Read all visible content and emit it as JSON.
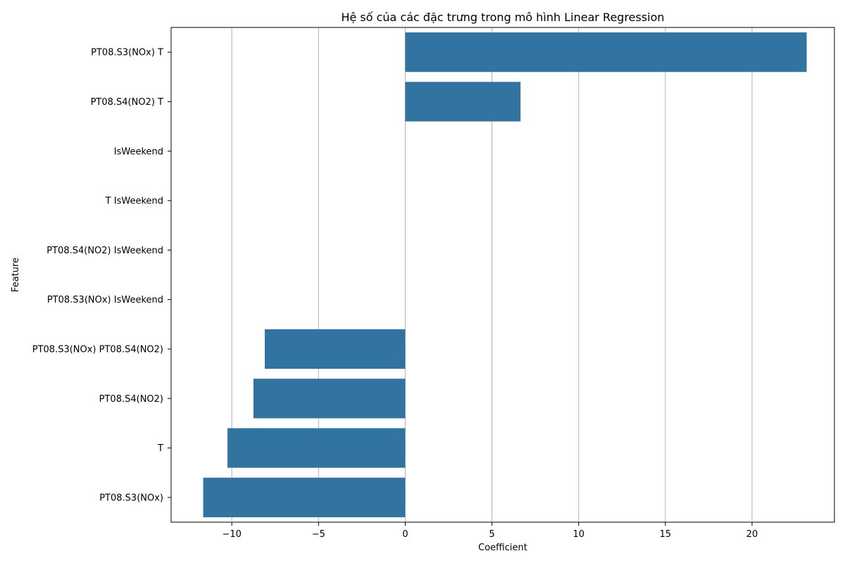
{
  "chart_data": {
    "type": "bar",
    "orientation": "horizontal",
    "title": "Hệ số của các đặc trưng trong mô hình Linear Regression",
    "xlabel": "Coefficient",
    "ylabel": "Feature",
    "categories": [
      "PT08.S3(NOx) T",
      "PT08.S4(NO2) T",
      "IsWeekend",
      "T IsWeekend",
      "PT08.S4(NO2) IsWeekend",
      "PT08.S3(NOx) IsWeekend",
      "PT08.S3(NOx) PT08.S4(NO2)",
      "PT08.S4(NO2)",
      "T",
      "PT08.S3(NOx)"
    ],
    "values": [
      23.15,
      6.65,
      0,
      0,
      0,
      0,
      -8.1,
      -8.75,
      -10.25,
      -11.65
    ],
    "xlim": [
      -13.5,
      24.75
    ],
    "xticks": [
      -10,
      -5,
      0,
      5,
      10,
      15,
      20
    ],
    "xtick_labels": [
      "−10",
      "−5",
      "0",
      "5",
      "10",
      "15",
      "20"
    ],
    "grid": "vertical",
    "bar_color": "#3274a1"
  }
}
